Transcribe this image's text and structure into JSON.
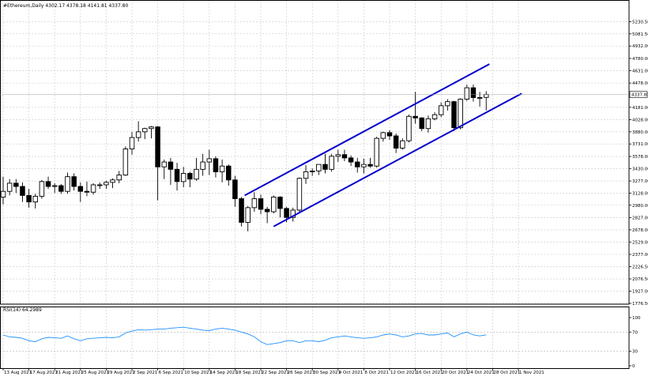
{
  "header": {
    "symbol_line": "#Ethereum,Daily  4302.17 4378.18 4141.81 4337.80"
  },
  "rsi_header": {
    "label": "RSI(14) 64.2989"
  },
  "price_axis": {
    "labels": [
      "5230.50",
      "5081.50",
      "4932.00",
      "4780.00",
      "4631.00",
      "4478.00",
      "4181.00",
      "4028.00",
      "3880.00",
      "3731.00",
      "3578.00",
      "3430.00",
      "3277.00",
      "3128.00",
      "2980.00",
      "2827.00",
      "2678.00",
      "2529.00",
      "2377.00",
      "2226.50",
      "2076.50",
      "1927.00",
      "1776.50"
    ],
    "current_price_tag": "4337.80"
  },
  "rsi_axis": {
    "labels": [
      "100",
      "70",
      "30",
      "0"
    ]
  },
  "date_axis": {
    "labels": [
      "13 Aug 2021",
      "17 Aug 2021",
      "21 Aug 2021",
      "25 Aug 2021",
      "29 Aug 2021",
      "2 Sep 2021",
      "6 Sep 2021",
      "10 Sep 2021",
      "14 Sep 2021",
      "18 Sep 2021",
      "22 Sep 2021",
      "26 Sep 2021",
      "30 Sep 2021",
      "4 Oct 2021",
      "8 Oct 2021",
      "12 Oct 2021",
      "16 Oct 2021",
      "20 Oct 2021",
      "24 Oct 2021",
      "28 Oct 2021",
      "1 Nov 2021"
    ]
  },
  "colors": {
    "channel": "#0000cc",
    "rsi_line": "#1e90ff",
    "candle": "#000000",
    "grid": "#c8c8c8"
  },
  "chart_data": {
    "type": "candlestick",
    "title": "#Ethereum,Daily",
    "ylim": [
      1776.5,
      5380
    ],
    "x_start_index": 0,
    "candles": [
      {
        "o": 3080,
        "h": 3330,
        "l": 2990,
        "c": 3150
      },
      {
        "o": 3150,
        "h": 3300,
        "l": 3100,
        "c": 3250
      },
      {
        "o": 3250,
        "h": 3300,
        "l": 3130,
        "c": 3210
      },
      {
        "o": 3210,
        "h": 3260,
        "l": 3020,
        "c": 3100
      },
      {
        "o": 3100,
        "h": 3180,
        "l": 2950,
        "c": 3020
      },
      {
        "o": 3020,
        "h": 3120,
        "l": 2940,
        "c": 3090
      },
      {
        "o": 3090,
        "h": 3290,
        "l": 3060,
        "c": 3270
      },
      {
        "o": 3270,
        "h": 3330,
        "l": 3180,
        "c": 3210
      },
      {
        "o": 3210,
        "h": 3250,
        "l": 3130,
        "c": 3220
      },
      {
        "o": 3220,
        "h": 3240,
        "l": 3120,
        "c": 3150
      },
      {
        "o": 3150,
        "h": 3380,
        "l": 3120,
        "c": 3330
      },
      {
        "o": 3330,
        "h": 3370,
        "l": 3160,
        "c": 3210
      },
      {
        "o": 3210,
        "h": 3260,
        "l": 3020,
        "c": 3150
      },
      {
        "o": 3150,
        "h": 3270,
        "l": 3090,
        "c": 3140
      },
      {
        "o": 3140,
        "h": 3250,
        "l": 3110,
        "c": 3230
      },
      {
        "o": 3230,
        "h": 3260,
        "l": 3180,
        "c": 3230
      },
      {
        "o": 3230,
        "h": 3280,
        "l": 3180,
        "c": 3260
      },
      {
        "o": 3260,
        "h": 3310,
        "l": 3190,
        "c": 3290
      },
      {
        "o": 3290,
        "h": 3400,
        "l": 3250,
        "c": 3350
      },
      {
        "o": 3350,
        "h": 3700,
        "l": 3340,
        "c": 3670
      },
      {
        "o": 3670,
        "h": 3880,
        "l": 3600,
        "c": 3810
      },
      {
        "o": 3810,
        "h": 4010,
        "l": 3760,
        "c": 3880
      },
      {
        "o": 3880,
        "h": 3930,
        "l": 3790,
        "c": 3920
      },
      {
        "o": 3920,
        "h": 3950,
        "l": 3800,
        "c": 3940
      },
      {
        "o": 3940,
        "h": 3950,
        "l": 3040,
        "c": 3450
      },
      {
        "o": 3450,
        "h": 3540,
        "l": 3300,
        "c": 3510
      },
      {
        "o": 3510,
        "h": 3560,
        "l": 3230,
        "c": 3420
      },
      {
        "o": 3420,
        "h": 3500,
        "l": 3160,
        "c": 3270
      },
      {
        "o": 3270,
        "h": 3450,
        "l": 3200,
        "c": 3370
      },
      {
        "o": 3370,
        "h": 3390,
        "l": 3200,
        "c": 3300
      },
      {
        "o": 3300,
        "h": 3560,
        "l": 3280,
        "c": 3420
      },
      {
        "o": 3420,
        "h": 3610,
        "l": 3340,
        "c": 3510
      },
      {
        "o": 3510,
        "h": 3660,
        "l": 3350,
        "c": 3550
      },
      {
        "o": 3550,
        "h": 3580,
        "l": 3320,
        "c": 3390
      },
      {
        "o": 3390,
        "h": 3540,
        "l": 3260,
        "c": 3460
      },
      {
        "o": 3460,
        "h": 3480,
        "l": 3220,
        "c": 3290
      },
      {
        "o": 3290,
        "h": 3340,
        "l": 2960,
        "c": 3060
      },
      {
        "o": 3060,
        "h": 3080,
        "l": 2720,
        "c": 2770
      },
      {
        "o": 2770,
        "h": 2970,
        "l": 2660,
        "c": 2950
      },
      {
        "o": 2950,
        "h": 3140,
        "l": 2900,
        "c": 3060
      },
      {
        "o": 3060,
        "h": 3110,
        "l": 2870,
        "c": 2930
      },
      {
        "o": 2930,
        "h": 2960,
        "l": 2760,
        "c": 2900
      },
      {
        "o": 2900,
        "h": 3100,
        "l": 2880,
        "c": 3080
      },
      {
        "o": 3080,
        "h": 3090,
        "l": 2830,
        "c": 2940
      },
      {
        "o": 2940,
        "h": 2960,
        "l": 2770,
        "c": 2830
      },
      {
        "o": 2830,
        "h": 2950,
        "l": 2780,
        "c": 2920
      },
      {
        "o": 2920,
        "h": 3320,
        "l": 2890,
        "c": 3310
      },
      {
        "o": 3310,
        "h": 3470,
        "l": 3240,
        "c": 3390
      },
      {
        "o": 3390,
        "h": 3430,
        "l": 3340,
        "c": 3400
      },
      {
        "o": 3400,
        "h": 3480,
        "l": 3350,
        "c": 3480
      },
      {
        "o": 3480,
        "h": 3610,
        "l": 3370,
        "c": 3420
      },
      {
        "o": 3420,
        "h": 3610,
        "l": 3390,
        "c": 3580
      },
      {
        "o": 3580,
        "h": 3660,
        "l": 3510,
        "c": 3600
      },
      {
        "o": 3600,
        "h": 3660,
        "l": 3520,
        "c": 3560
      },
      {
        "o": 3560,
        "h": 3590,
        "l": 3460,
        "c": 3510
      },
      {
        "o": 3510,
        "h": 3560,
        "l": 3380,
        "c": 3450
      },
      {
        "o": 3450,
        "h": 3550,
        "l": 3370,
        "c": 3480
      },
      {
        "o": 3480,
        "h": 3560,
        "l": 3440,
        "c": 3460
      },
      {
        "o": 3460,
        "h": 3820,
        "l": 3440,
        "c": 3800
      },
      {
        "o": 3800,
        "h": 3880,
        "l": 3760,
        "c": 3870
      },
      {
        "o": 3870,
        "h": 3900,
        "l": 3780,
        "c": 3830
      },
      {
        "o": 3830,
        "h": 3860,
        "l": 3620,
        "c": 3680
      },
      {
        "o": 3680,
        "h": 3800,
        "l": 3660,
        "c": 3770
      },
      {
        "o": 3770,
        "h": 4090,
        "l": 3750,
        "c": 4070
      },
      {
        "o": 4070,
        "h": 4370,
        "l": 3980,
        "c": 4050
      },
      {
        "o": 4050,
        "h": 4060,
        "l": 3890,
        "c": 3920
      },
      {
        "o": 3920,
        "h": 4080,
        "l": 3870,
        "c": 4040
      },
      {
        "o": 4040,
        "h": 4120,
        "l": 4020,
        "c": 4090
      },
      {
        "o": 4090,
        "h": 4240,
        "l": 4060,
        "c": 4200
      },
      {
        "o": 4200,
        "h": 4280,
        "l": 4140,
        "c": 4250
      },
      {
        "o": 4250,
        "h": 4260,
        "l": 3890,
        "c": 3930
      },
      {
        "o": 3930,
        "h": 4290,
        "l": 3910,
        "c": 4280
      },
      {
        "o": 4280,
        "h": 4460,
        "l": 4260,
        "c": 4420
      },
      {
        "o": 4420,
        "h": 4460,
        "l": 4250,
        "c": 4300
      },
      {
        "o": 4300,
        "h": 4370,
        "l": 4190,
        "c": 4300
      },
      {
        "o": 4302.17,
        "h": 4378.18,
        "l": 4141.81,
        "c": 4337.8
      }
    ],
    "channel_upper": [
      {
        "x": 37.5,
        "y": 3100
      },
      {
        "x": 75.5,
        "y": 4710
      }
    ],
    "channel_lower": [
      {
        "x": 42,
        "y": 2720
      },
      {
        "x": 80.5,
        "y": 4350
      }
    ],
    "rsi": {
      "name": "RSI(14)",
      "ylim": [
        0,
        100
      ],
      "levels": [
        30,
        70
      ],
      "values": [
        64,
        60,
        59,
        57,
        52,
        50,
        56,
        59,
        58,
        57,
        62,
        56,
        52,
        56,
        57,
        58,
        59,
        58,
        60,
        68,
        72,
        75,
        74,
        75,
        76,
        76,
        78,
        79,
        80,
        78,
        76,
        74,
        73,
        76,
        78,
        76,
        74,
        70,
        66,
        60,
        50,
        44,
        46,
        48,
        52,
        52,
        48,
        52,
        52,
        50,
        53,
        58,
        60,
        62,
        60,
        58,
        57,
        58,
        60,
        64,
        66,
        64,
        60,
        62,
        66,
        67,
        64,
        64,
        66,
        68,
        60,
        66,
        70,
        64,
        62,
        64.3
      ]
    }
  }
}
